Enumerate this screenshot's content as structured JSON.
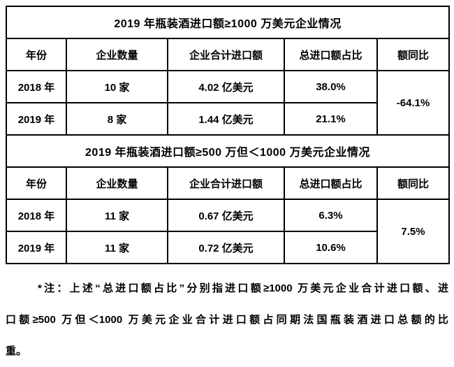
{
  "sections": [
    {
      "title": "2019 年瓶装酒进口额≥1000 万美元企业情况",
      "headers": [
        "年份",
        "企业数量",
        "企业合计进口额",
        "总进口额占比",
        "额同比"
      ],
      "rows": [
        {
          "year": "2018 年",
          "count": "10 家",
          "total": "4.02 亿美元",
          "share": "38.0%"
        },
        {
          "year": "2019 年",
          "count": "8 家",
          "total": "1.44 亿美元",
          "share": "21.1%"
        }
      ],
      "yoy": "-64.1%"
    },
    {
      "title": "2019 年瓶装酒进口额≥500 万但＜1000 万美元企业情况",
      "headers": [
        "年份",
        "企业数量",
        "企业合计进口额",
        "总进口额占比",
        "额同比"
      ],
      "rows": [
        {
          "year": "2018 年",
          "count": "11 家",
          "total": "0.67 亿美元",
          "share": "6.3%"
        },
        {
          "year": "2019 年",
          "count": "11 家",
          "total": "0.72 亿美元",
          "share": "10.6%"
        }
      ],
      "yoy": "7.5%"
    }
  ],
  "footnote": {
    "line1": "*注：上述“总进口额占比”分别指进口额≥1000 万美元企业合计进口额、进",
    "line2": "口额≥500 万但＜1000 万美元企业合计进口额占同期法国瓶装酒进口总额的比",
    "line3": "重。"
  }
}
